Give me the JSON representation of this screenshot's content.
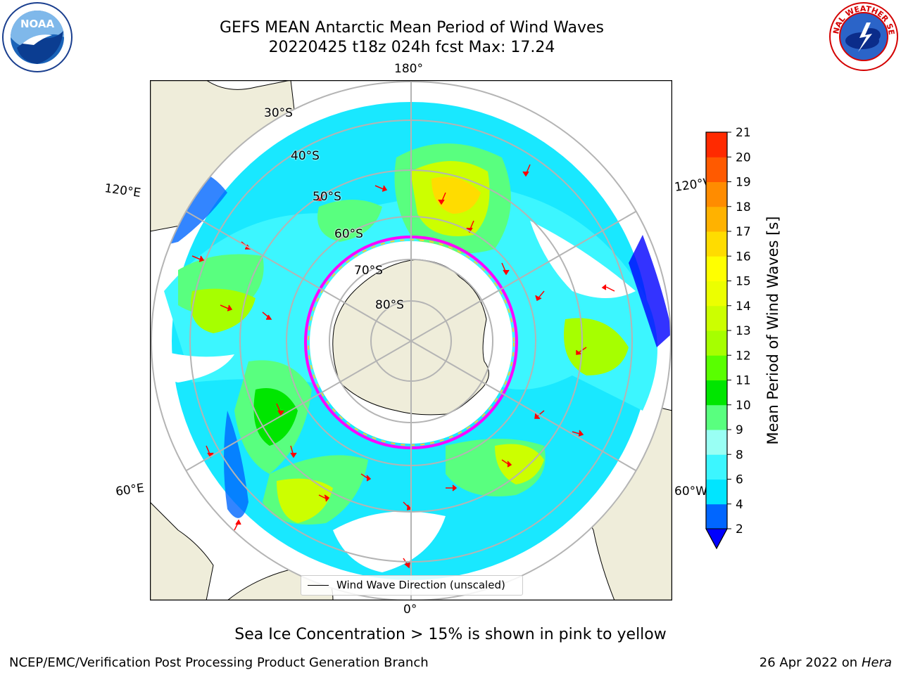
{
  "title": {
    "line1": "GEFS MEAN Antarctic Mean Period of Wind Waves",
    "line2": "20220425 t18z 024h fcst   Max: 17.24"
  },
  "map": {
    "projection": "south-polar-stereographic",
    "longitude_labels": {
      "top": "180°",
      "bottom": "0°",
      "upper_left": "120°E",
      "upper_right": "120°W",
      "lower_left": "60°E",
      "lower_right": "60°W"
    },
    "latitude_labels": [
      "30°S",
      "40°S",
      "50°S",
      "60°S",
      "70°S",
      "80°S"
    ],
    "land_color": "#efedda",
    "grid_color": "#b4b4b4",
    "sea_ice_colors": [
      "#ff00ff",
      "#ffcc33"
    ],
    "arrow_color": "#ff0000"
  },
  "legend": {
    "label": "Wind Wave Direction (unscaled)"
  },
  "colorbar": {
    "label": "Mean Period of Wind Waves [s]",
    "ticks": [
      "2",
      "4",
      "6",
      "8",
      "9",
      "10",
      "11",
      "12",
      "13",
      "14",
      "15",
      "16",
      "17",
      "18",
      "19",
      "20",
      "21"
    ],
    "colors": [
      "#0066ff",
      "#00e5ff",
      "#3cf6ff",
      "#99fff4",
      "#59ff7f",
      "#00e600",
      "#59ff00",
      "#a6ff00",
      "#ccff00",
      "#ecff00",
      "#ffff00",
      "#ffdc00",
      "#ffb200",
      "#ff8c00",
      "#ff5a00",
      "#ff2a00"
    ],
    "under_color": "#0000ff"
  },
  "note": "Sea Ice Concentration > 15% is shown in pink to yellow",
  "footer": {
    "left": "NCEP/EMC/Verification Post Processing Product Generation Branch",
    "right_date": "26 Apr 2022 on ",
    "right_host": "Hera"
  },
  "logos": {
    "noaa_text": "NOAA",
    "nws_text": "NATIONAL WEATHER SERVICE"
  }
}
